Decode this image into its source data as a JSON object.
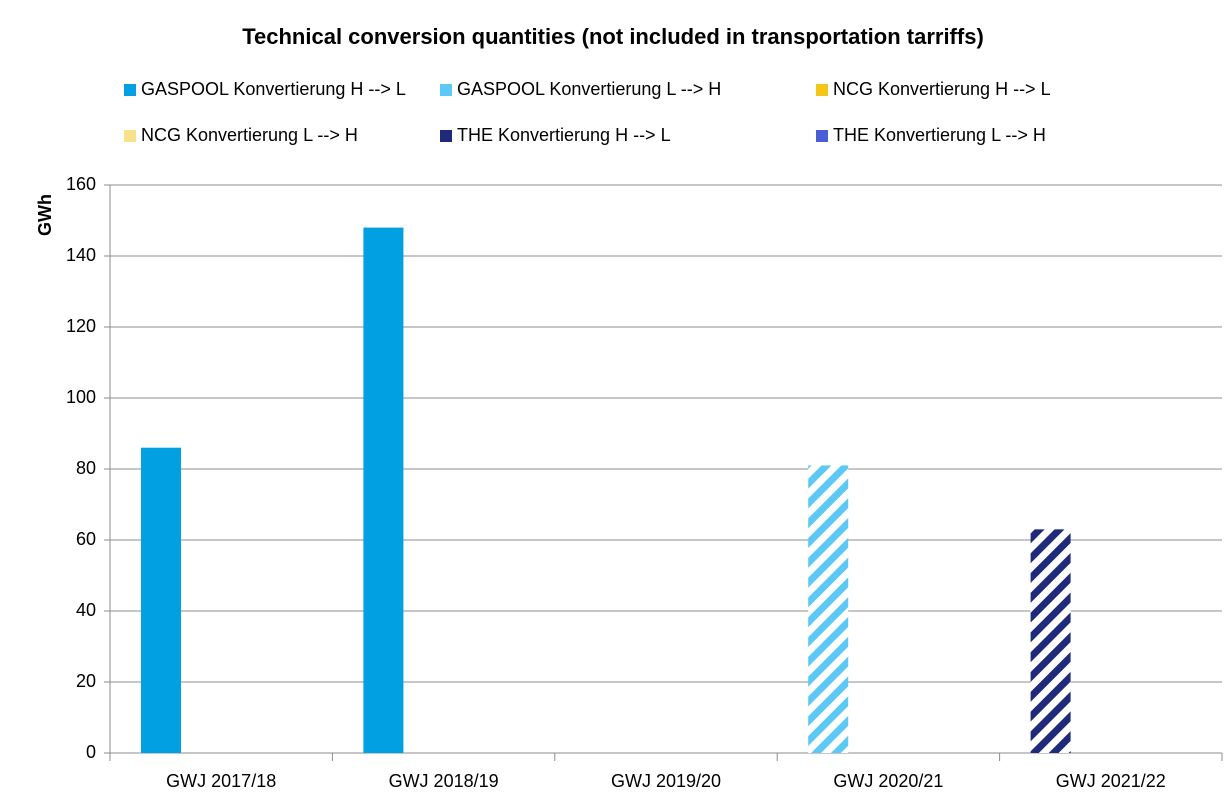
{
  "chart_data": {
    "type": "bar",
    "title": "Technical conversion quantities (not included in transportation tarriffs)",
    "y_label": "GWh",
    "categories": [
      "GWJ 2017/18",
      "GWJ 2018/19",
      "GWJ 2019/20",
      "GWJ 2020/21",
      "GWJ 2021/22"
    ],
    "series": [
      {
        "name": "GASPOOL Konvertierung H --> L",
        "color": "#00a0e3",
        "values": [
          86,
          148,
          null,
          null,
          null
        ]
      },
      {
        "name": "GASPOOL Konvertierung L --> H",
        "color": "#5bc8f5",
        "hatched": true,
        "values": [
          null,
          null,
          null,
          81,
          null
        ]
      },
      {
        "name": "NCG Konvertierung H --> L",
        "color": "#f5c518",
        "values": [
          null,
          null,
          null,
          null,
          null
        ]
      },
      {
        "name": "NCG Konvertierung L --> H",
        "color": "#f9e08a",
        "values": [
          null,
          null,
          null,
          null,
          null
        ]
      },
      {
        "name": "THE Konvertierung H --> L",
        "color": "#1f2a7a",
        "hatched": true,
        "values": [
          null,
          null,
          null,
          null,
          63
        ]
      },
      {
        "name": "THE Konvertierung L --> H",
        "color": "#4a5fd6",
        "values": [
          null,
          null,
          null,
          null,
          null
        ]
      }
    ],
    "ylim": [
      0,
      160
    ],
    "yticks": [
      0,
      20,
      40,
      60,
      80,
      100,
      120,
      140,
      160
    ],
    "grid": true,
    "legend": "top"
  }
}
